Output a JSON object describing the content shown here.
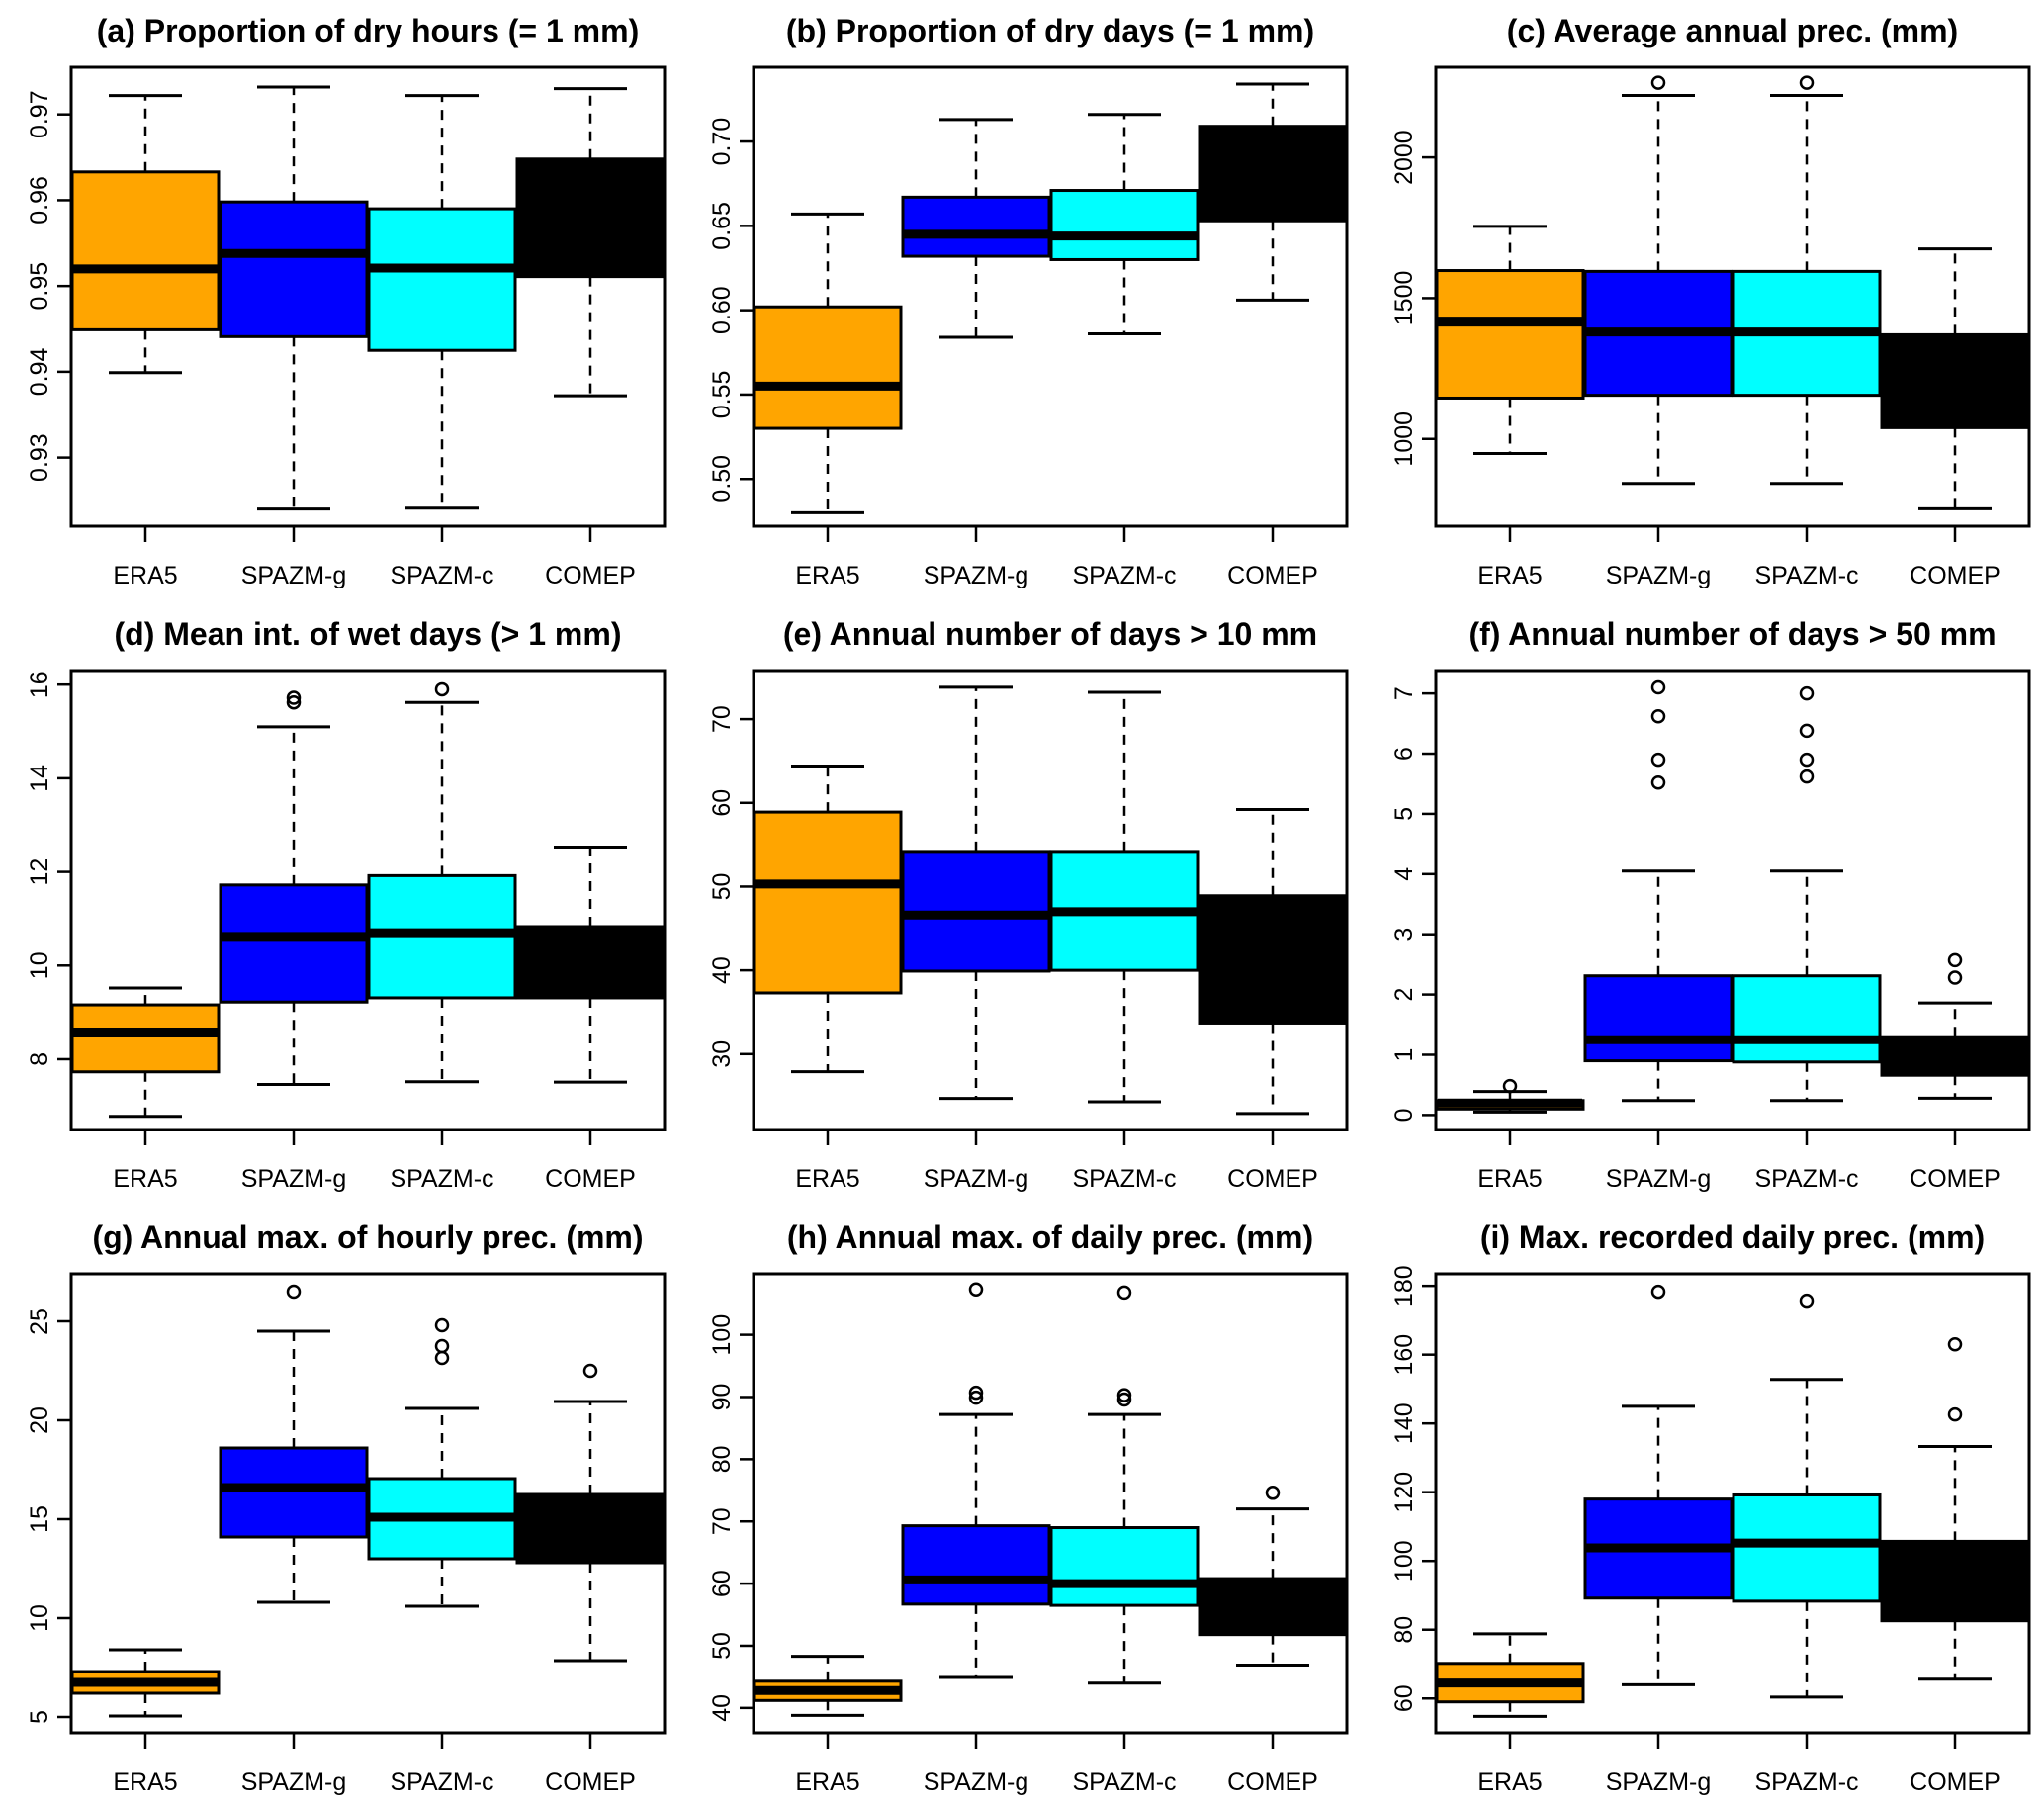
{
  "figure": {
    "categories": [
      "ERA5",
      "SPAZM-g",
      "SPAZM-c",
      "COMEP"
    ],
    "colors": {
      "ERA5": "#FFA500",
      "SPAZM-g": "#0000FF",
      "SPAZM-c": "#00FFFF",
      "COMEP": "#000000"
    }
  },
  "chart_data": [
    {
      "type": "box",
      "panel": "a",
      "title": "(a) Proportion of dry hours (= 1 mm)",
      "xlabel": "",
      "ylabel": "",
      "ylim": [
        0.922,
        0.9755
      ],
      "yticks": [
        0.93,
        0.94,
        0.95,
        0.96,
        0.97
      ],
      "ytick_labels": [
        "0.93",
        "0.94",
        "0.95",
        "0.96",
        "0.97"
      ],
      "grid": false,
      "series": [
        {
          "name": "ERA5",
          "whisker_low": 0.9399,
          "q1": 0.9449,
          "median": 0.952,
          "q3": 0.9633,
          "whisker_high": 0.9722,
          "outliers": []
        },
        {
          "name": "SPAZM-g",
          "whisker_low": 0.924,
          "q1": 0.9441,
          "median": 0.9538,
          "q3": 0.9598,
          "whisker_high": 0.9732,
          "outliers": []
        },
        {
          "name": "SPAZM-c",
          "whisker_low": 0.9241,
          "q1": 0.9425,
          "median": 0.9521,
          "q3": 0.959,
          "whisker_high": 0.9722,
          "outliers": []
        },
        {
          "name": "COMEP",
          "whisker_low": 0.9372,
          "q1": 0.9511,
          "median": null,
          "q3": 0.9648,
          "whisker_high": 0.973,
          "outliers": []
        }
      ]
    },
    {
      "type": "box",
      "panel": "b",
      "title": "(b) Proportion of dry days (= 1 mm)",
      "xlabel": "",
      "ylabel": "",
      "ylim": [
        0.472,
        0.744
      ],
      "yticks": [
        0.5,
        0.55,
        0.6,
        0.65,
        0.7
      ],
      "ytick_labels": [
        "0.50",
        "0.55",
        "0.60",
        "0.65",
        "0.70"
      ],
      "grid": false,
      "series": [
        {
          "name": "ERA5",
          "whisker_low": 0.48,
          "q1": 0.53,
          "median": 0.555,
          "q3": 0.602,
          "whisker_high": 0.657,
          "outliers": []
        },
        {
          "name": "SPAZM-g",
          "whisker_low": 0.584,
          "q1": 0.632,
          "median": 0.645,
          "q3": 0.667,
          "whisker_high": 0.713,
          "outliers": []
        },
        {
          "name": "SPAZM-c",
          "whisker_low": 0.586,
          "q1": 0.63,
          "median": 0.644,
          "q3": 0.671,
          "whisker_high": 0.716,
          "outliers": []
        },
        {
          "name": "COMEP",
          "whisker_low": 0.606,
          "q1": 0.653,
          "median": null,
          "q3": 0.709,
          "whisker_high": 0.734,
          "outliers": []
        }
      ]
    },
    {
      "type": "box",
      "panel": "c",
      "title": "(c) Average annual prec. (mm)",
      "xlabel": "",
      "ylabel": "",
      "ylim": [
        690,
        2320
      ],
      "yticks": [
        1000,
        1500,
        2000
      ],
      "ytick_labels": [
        "1000",
        "1500",
        "2000"
      ],
      "grid": false,
      "series": [
        {
          "name": "ERA5",
          "whisker_low": 948,
          "q1": 1145,
          "median": 1415,
          "q3": 1598,
          "whisker_high": 1755,
          "outliers": []
        },
        {
          "name": "SPAZM-g",
          "whisker_low": 842,
          "q1": 1155,
          "median": 1380,
          "q3": 1595,
          "whisker_high": 2220,
          "outliers": [
            2265
          ]
        },
        {
          "name": "SPAZM-c",
          "whisker_low": 842,
          "q1": 1155,
          "median": 1380,
          "q3": 1595,
          "whisker_high": 2220,
          "outliers": [
            2265
          ]
        },
        {
          "name": "COMEP",
          "whisker_low": 752,
          "q1": 1040,
          "median": null,
          "q3": 1370,
          "whisker_high": 1675,
          "outliers": []
        }
      ]
    },
    {
      "type": "box",
      "panel": "d",
      "title": "(d) Mean int. of wet days (> 1 mm)",
      "xlabel": "",
      "ylabel": "",
      "ylim": [
        6.5,
        16.3
      ],
      "yticks": [
        8,
        10,
        12,
        14,
        16
      ],
      "ytick_labels": [
        "8",
        "10",
        "12",
        "14",
        "16"
      ],
      "grid": false,
      "series": [
        {
          "name": "ERA5",
          "whisker_low": 6.78,
          "q1": 7.73,
          "median": 8.58,
          "q3": 9.16,
          "whisker_high": 9.52,
          "outliers": []
        },
        {
          "name": "SPAZM-g",
          "whisker_low": 7.46,
          "q1": 9.22,
          "median": 10.62,
          "q3": 11.72,
          "whisker_high": 15.1,
          "outliers": [
            15.62,
            15.72
          ]
        },
        {
          "name": "SPAZM-c",
          "whisker_low": 7.52,
          "q1": 9.31,
          "median": 10.7,
          "q3": 11.92,
          "whisker_high": 15.62,
          "outliers": [
            15.9
          ]
        },
        {
          "name": "COMEP",
          "whisker_low": 7.51,
          "q1": 9.31,
          "median": null,
          "q3": 10.83,
          "whisker_high": 12.53,
          "outliers": []
        }
      ]
    },
    {
      "type": "box",
      "panel": "e",
      "title": "(e) Annual number of days > 10 mm",
      "xlabel": "",
      "ylabel": "",
      "ylim": [
        21.0,
        75.8
      ],
      "yticks": [
        30,
        40,
        50,
        60,
        70
      ],
      "ytick_labels": [
        "30",
        "40",
        "50",
        "60",
        "70"
      ],
      "grid": false,
      "series": [
        {
          "name": "ERA5",
          "whisker_low": 27.9,
          "q1": 37.3,
          "median": 50.3,
          "q3": 58.9,
          "whisker_high": 64.4,
          "outliers": []
        },
        {
          "name": "SPAZM-g",
          "whisker_low": 24.7,
          "q1": 39.9,
          "median": 46.6,
          "q3": 54.2,
          "whisker_high": 73.8,
          "outliers": []
        },
        {
          "name": "SPAZM-c",
          "whisker_low": 24.3,
          "q1": 40.0,
          "median": 47.0,
          "q3": 54.2,
          "whisker_high": 73.2,
          "outliers": []
        },
        {
          "name": "COMEP",
          "whisker_low": 22.9,
          "q1": 33.7,
          "median": null,
          "q3": 48.9,
          "whisker_high": 59.2,
          "outliers": []
        }
      ]
    },
    {
      "type": "box",
      "panel": "f",
      "title": "(f) Annual number of days > 50 mm",
      "xlabel": "",
      "ylabel": "",
      "ylim": [
        -0.24,
        7.38
      ],
      "yticks": [
        0,
        1,
        2,
        3,
        4,
        5,
        6,
        7
      ],
      "ytick_labels": [
        "0",
        "1",
        "2",
        "3",
        "4",
        "5",
        "6",
        "7"
      ],
      "grid": false,
      "series": [
        {
          "name": "ERA5",
          "whisker_low": 0.05,
          "q1": 0.1,
          "median": 0.2,
          "q3": 0.24,
          "whisker_high": 0.39,
          "outliers": [
            0.48
          ]
        },
        {
          "name": "SPAZM-g",
          "whisker_low": 0.24,
          "q1": 0.9,
          "median": 1.25,
          "q3": 2.31,
          "whisker_high": 4.05,
          "outliers": [
            5.52,
            5.9,
            6.62,
            7.1
          ]
        },
        {
          "name": "SPAZM-c",
          "whisker_low": 0.24,
          "q1": 0.88,
          "median": 1.25,
          "q3": 2.31,
          "whisker_high": 4.05,
          "outliers": [
            5.62,
            5.9,
            6.38,
            7.0
          ]
        },
        {
          "name": "COMEP",
          "whisker_low": 0.28,
          "q1": 0.66,
          "median": null,
          "q3": 1.3,
          "whisker_high": 1.86,
          "outliers": [
            2.28,
            2.57
          ]
        }
      ]
    },
    {
      "type": "box",
      "panel": "g",
      "title": "(g) Annual max. of hourly prec. (mm)",
      "xlabel": "",
      "ylabel": "",
      "ylim": [
        4.2,
        27.4
      ],
      "yticks": [
        5,
        10,
        15,
        20,
        25
      ],
      "ytick_labels": [
        "5",
        "10",
        "15",
        "20",
        "25"
      ],
      "grid": false,
      "series": [
        {
          "name": "ERA5",
          "whisker_low": 5.05,
          "q1": 6.2,
          "median": 6.75,
          "q3": 7.3,
          "whisker_high": 8.4,
          "outliers": []
        },
        {
          "name": "SPAZM-g",
          "whisker_low": 10.8,
          "q1": 14.1,
          "median": 16.6,
          "q3": 18.6,
          "whisker_high": 24.5,
          "outliers": [
            26.5
          ]
        },
        {
          "name": "SPAZM-c",
          "whisker_low": 10.6,
          "q1": 13.0,
          "median": 15.1,
          "q3": 17.05,
          "whisker_high": 20.6,
          "outliers": [
            23.15,
            23.75,
            24.8
          ]
        },
        {
          "name": "COMEP",
          "whisker_low": 7.85,
          "q1": 12.8,
          "median": null,
          "q3": 16.25,
          "whisker_high": 20.95,
          "outliers": [
            22.5
          ]
        }
      ]
    },
    {
      "type": "box",
      "panel": "h",
      "title": "(h) Annual max. of daily prec. (mm)",
      "xlabel": "",
      "ylabel": "",
      "ylim": [
        36.0,
        109.8
      ],
      "yticks": [
        40,
        50,
        60,
        70,
        80,
        90,
        100
      ],
      "ytick_labels": [
        "40",
        "50",
        "60",
        "70",
        "80",
        "90",
        "100"
      ],
      "grid": false,
      "series": [
        {
          "name": "ERA5",
          "whisker_low": 38.8,
          "q1": 41.2,
          "median": 42.8,
          "q3": 44.3,
          "whisker_high": 48.3,
          "outliers": []
        },
        {
          "name": "SPAZM-g",
          "whisker_low": 44.9,
          "q1": 56.7,
          "median": 60.6,
          "q3": 69.3,
          "whisker_high": 87.2,
          "outliers": [
            89.9,
            90.7,
            107.3
          ]
        },
        {
          "name": "SPAZM-c",
          "whisker_low": 44.0,
          "q1": 56.5,
          "median": 60.0,
          "q3": 69.0,
          "whisker_high": 87.2,
          "outliers": [
            89.6,
            90.3,
            106.8
          ]
        },
        {
          "name": "COMEP",
          "whisker_low": 46.9,
          "q1": 51.8,
          "median": null,
          "q3": 60.8,
          "whisker_high": 72.0,
          "outliers": [
            74.6
          ]
        }
      ]
    },
    {
      "type": "box",
      "panel": "i",
      "title": "(i) Max. recorded daily prec. (mm)",
      "xlabel": "",
      "ylabel": "",
      "ylim": [
        50.0,
        183.5
      ],
      "yticks": [
        60,
        80,
        100,
        120,
        140,
        160,
        180
      ],
      "ytick_labels": [
        "60",
        "80",
        "100",
        "120",
        "140",
        "160",
        "180"
      ],
      "grid": false,
      "series": [
        {
          "name": "ERA5",
          "whisker_low": 54.8,
          "q1": 59.0,
          "median": 64.5,
          "q3": 70.2,
          "whisker_high": 78.8,
          "outliers": []
        },
        {
          "name": "SPAZM-g",
          "whisker_low": 64.0,
          "q1": 89.2,
          "median": 103.8,
          "q3": 118.0,
          "whisker_high": 145.0,
          "outliers": [
            178.3
          ]
        },
        {
          "name": "SPAZM-c",
          "whisker_low": 60.4,
          "q1": 88.3,
          "median": 105.2,
          "q3": 119.2,
          "whisker_high": 152.8,
          "outliers": [
            175.7
          ]
        },
        {
          "name": "COMEP",
          "whisker_low": 65.6,
          "q1": 82.6,
          "median": null,
          "q3": 105.7,
          "whisker_high": 133.3,
          "outliers": [
            142.6,
            163.0
          ]
        }
      ]
    }
  ]
}
